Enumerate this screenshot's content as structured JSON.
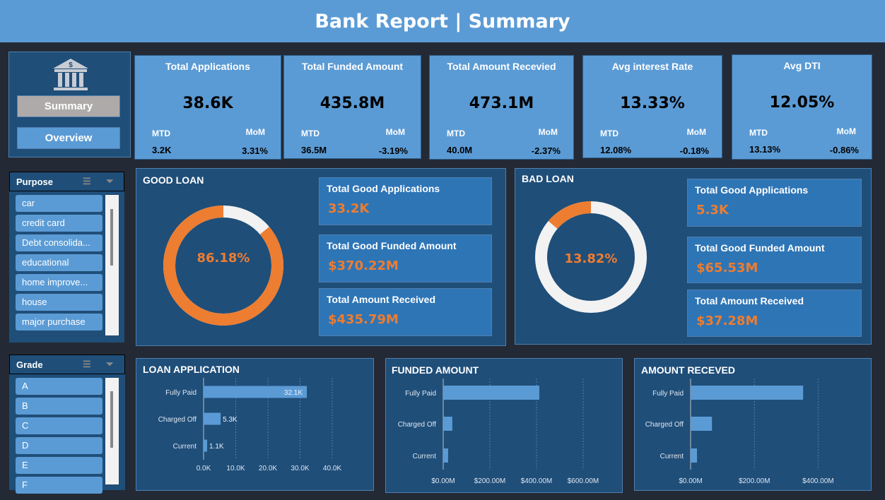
{
  "header": {
    "title": "Bank Report | Summary"
  },
  "nav": {
    "icon": "bank-icon",
    "summary": "Summary",
    "overview": "Overview"
  },
  "kpis": [
    {
      "title": "Total Applications",
      "value": "38.6K",
      "mtd_label": "MTD",
      "mom_label": "MoM",
      "mtd": "3.2K",
      "mom": "3.31%"
    },
    {
      "title": "Total Funded Amount",
      "value": "435.8M",
      "mtd_label": "MTD",
      "mom_label": "MoM",
      "mtd": "36.5M",
      "mom": "-3.19%"
    },
    {
      "title": "Total Amount Recevied",
      "value": "473.1M",
      "mtd_label": "MTD",
      "mom_label": "MoM",
      "mtd": "40.0M",
      "mom": "-2.37%"
    },
    {
      "title": "Avg interest Rate",
      "value": "13.33%",
      "mtd_label": "MTD",
      "mom_label": "MoM",
      "mtd": "12.08%",
      "mom": "-0.18%"
    },
    {
      "title": "Avg DTI",
      "value": "12.05%",
      "mtd_label": "MTD",
      "mom_label": "MoM",
      "mtd": "13.13%",
      "mom": "-0.86%"
    }
  ],
  "purpose": {
    "title": "Purpose",
    "items": [
      "car",
      "credit card",
      "Debt consolida...",
      "educational",
      "home improve...",
      "house",
      "major purchase"
    ]
  },
  "grade": {
    "title": "Grade",
    "items": [
      "A",
      "B",
      "C",
      "D",
      "E",
      "F"
    ]
  },
  "good_loan": {
    "title": "GOOD LOAN",
    "percent": 86.18,
    "percent_label": "86.18%",
    "stats": [
      {
        "label": "Total Good Applications",
        "value": "33.2K"
      },
      {
        "label": "Total Good Funded Amount",
        "value": "$370.22M"
      },
      {
        "label": "Total Amount Received",
        "value": "$435.79M"
      }
    ]
  },
  "bad_loan": {
    "title": "BAD LOAN",
    "percent": 13.82,
    "percent_label": "13.82%",
    "stats": [
      {
        "label": "Total Good Applications",
        "value": "5.3K"
      },
      {
        "label": "Total Good Funded Amount",
        "value": "$65.53M"
      },
      {
        "label": "Total Amount Received",
        "value": "$37.28M"
      }
    ]
  },
  "colors": {
    "header": "#5b9bd5",
    "panel": "#1f4e79",
    "accent": "#ed7d31",
    "bar": "#5b9bd5",
    "ring_rest": "#f2f2f2"
  },
  "chart_data": [
    {
      "type": "bar",
      "title": "LOAN APPLICATION",
      "categories": [
        "Fully Paid",
        "Charged Off",
        "Current"
      ],
      "values": [
        32.1,
        5.3,
        1.1
      ],
      "data_labels": [
        "32.1K",
        "5.3K",
        "1.1K"
      ],
      "ticks": [
        "0.0K",
        "10.0K",
        "20.0K",
        "30.0K",
        "40.0K"
      ],
      "xlim": [
        0,
        40
      ],
      "grid": true
    },
    {
      "type": "bar",
      "title": "FUNDED AMOUNT",
      "categories": [
        "Fully Paid",
        "Charged Off",
        "Current"
      ],
      "values": [
        412,
        39,
        21
      ],
      "ticks": [
        "$0.00M",
        "$200.00M",
        "$400.00M",
        "$600.00M"
      ],
      "xlim": [
        0,
        600
      ],
      "grid": true
    },
    {
      "type": "bar",
      "title": "AMOUNT RECEVED",
      "categories": [
        "Fully Paid",
        "Charged Off",
        "Current"
      ],
      "values": [
        353,
        67,
        20
      ],
      "ticks": [
        "$0.00M",
        "$200.00M",
        "$400.00M"
      ],
      "xlim": [
        0,
        530
      ],
      "grid": true
    }
  ]
}
